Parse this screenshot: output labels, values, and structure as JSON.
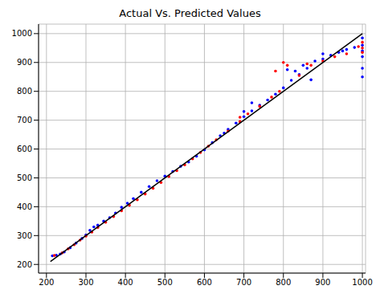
{
  "chart_data": {
    "type": "scatter",
    "title": "Actual Vs. Predicted Values",
    "xlim": [
      180,
      1008
    ],
    "ylim": [
      170,
      1033
    ],
    "xticks": [
      200,
      300,
      400,
      500,
      600,
      700,
      800,
      900,
      1000
    ],
    "yticks": [
      200,
      300,
      400,
      500,
      600,
      700,
      800,
      900,
      1000
    ],
    "grid": true,
    "series": [
      {
        "type": "scatter",
        "color": "#0000ff",
        "x": [
          215,
          225,
          235,
          245,
          260,
          275,
          290,
          300,
          310,
          320,
          330,
          345,
          360,
          375,
          390,
          405,
          420,
          440,
          460,
          480,
          500,
          520,
          540,
          560,
          580,
          600,
          620,
          640,
          660,
          680,
          700,
          720,
          740,
          760,
          780,
          800,
          820,
          840,
          860,
          880,
          900,
          920,
          940,
          960,
          980,
          1000,
          1000,
          1000,
          1000,
          1000,
          1000,
          810,
          830,
          850,
          870,
          700,
          720,
          650,
          900,
          950
        ],
        "y": [
          230,
          232,
          236,
          243,
          258,
          274,
          290,
          302,
          318,
          330,
          336,
          350,
          362,
          378,
          398,
          412,
          428,
          450,
          470,
          490,
          506,
          522,
          540,
          555,
          575,
          597,
          622,
          646,
          668,
          690,
          712,
          732,
          752,
          770,
          790,
          812,
          838,
          858,
          880,
          905,
          912,
          925,
          935,
          945,
          952,
          960,
          940,
          920,
          985,
          880,
          850,
          875,
          870,
          890,
          840,
          730,
          760,
          655,
          930,
          940
        ]
      },
      {
        "type": "scatter",
        "color": "#ff0000",
        "x": [
          220,
          240,
          255,
          270,
          285,
          300,
          315,
          330,
          350,
          370,
          390,
          410,
          430,
          450,
          470,
          490,
          510,
          530,
          550,
          570,
          590,
          610,
          630,
          660,
          690,
          710,
          740,
          770,
          790,
          810,
          840,
          870,
          900,
          930,
          960,
          990,
          1000,
          1000,
          1000,
          780,
          800,
          690,
          860
        ],
        "y": [
          231,
          240,
          254,
          268,
          284,
          298,
          312,
          328,
          346,
          366,
          386,
          405,
          424,
          444,
          464,
          484,
          505,
          525,
          545,
          566,
          588,
          610,
          632,
          662,
          695,
          722,
          748,
          780,
          800,
          890,
          855,
          890,
          905,
          920,
          930,
          955,
          970,
          950,
          935,
          870,
          900,
          710,
          895
        ]
      },
      {
        "type": "line",
        "color": "#000000",
        "x": [
          210,
          1000
        ],
        "y": [
          210,
          1000
        ]
      }
    ]
  }
}
